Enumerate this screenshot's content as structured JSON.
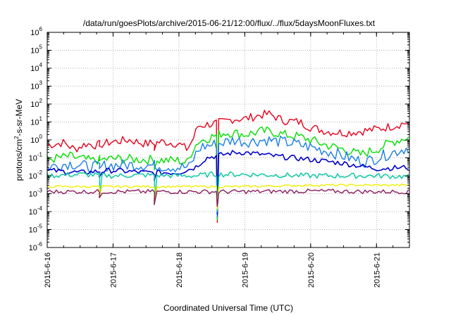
{
  "chart_data": {
    "type": "line",
    "title": "/data/run/goesPlots/archive/2015-06-21/12:00/flux/../flux/5daysMoonFluxes.txt",
    "xlabel": "Coordinated Universal Time (UTC)",
    "ylabel": {
      "prefix": "protons/cm",
      "sup": "2",
      "suffix": "-s-sr-MeV"
    },
    "y_scale": "log",
    "ylim": [
      1e-06,
      1000000.0
    ],
    "y_ticks": [
      {
        "value": 1000000.0,
        "base": "10",
        "exp": "6"
      },
      {
        "value": 100000.0,
        "base": "10",
        "exp": "5"
      },
      {
        "value": 10000.0,
        "base": "10",
        "exp": "4"
      },
      {
        "value": 1000.0,
        "base": "10",
        "exp": "3"
      },
      {
        "value": 100.0,
        "base": "10",
        "exp": "2"
      },
      {
        "value": 10.0,
        "base": "10",
        "exp": "1"
      },
      {
        "value": 1.0,
        "base": "10",
        "exp": "0"
      },
      {
        "value": 0.1,
        "base": "10",
        "exp": "-1"
      },
      {
        "value": 0.01,
        "base": "10",
        "exp": "-2"
      },
      {
        "value": 0.001,
        "base": "10",
        "exp": "-3"
      },
      {
        "value": 0.0001,
        "base": "10",
        "exp": "-4"
      },
      {
        "value": 1e-05,
        "base": "10",
        "exp": "-5"
      },
      {
        "value": 1e-06,
        "base": "10",
        "exp": "-6"
      }
    ],
    "xlim": [
      "2015-06-16T00:00",
      "2015-06-21T12:00"
    ],
    "x_ticks": [
      "2015-6-16",
      "2015-6-17",
      "2015-6-18",
      "2015-6-19",
      "2015-6-20",
      "2015-6-21"
    ],
    "grid": true,
    "legend": "none",
    "series": [
      {
        "color": "#e8001c",
        "noise": 0.08,
        "points": [
          [
            "2015-06-16T00:00",
            0.5
          ],
          [
            "2015-06-16T06:00",
            0.7
          ],
          [
            "2015-06-16T10:00",
            0.3
          ],
          [
            "2015-06-16T14:00",
            0.6
          ],
          [
            "2015-06-16T18:00",
            0.5
          ],
          [
            "2015-06-17T00:00",
            0.8
          ],
          [
            "2015-06-17T06:00",
            1.0
          ],
          [
            "2015-06-17T12:00",
            0.6
          ],
          [
            "2015-06-17T18:00",
            0.8
          ],
          [
            "2015-06-18T00:00",
            0.6
          ],
          [
            "2015-06-18T03:00",
            0.3
          ],
          [
            "2015-06-18T05:00",
            1.0
          ],
          [
            "2015-06-18T07:00",
            6.0
          ],
          [
            "2015-06-18T12:00",
            8.0
          ],
          [
            "2015-06-18T16:00",
            10.0
          ],
          [
            "2015-06-18T20:00",
            15.0
          ],
          [
            "2015-06-19T00:00",
            15.0
          ],
          [
            "2015-06-19T06:00",
            25.0
          ],
          [
            "2015-06-19T09:00",
            28.0
          ],
          [
            "2015-06-19T14:00",
            12.0
          ],
          [
            "2015-06-19T20:00",
            10.0
          ],
          [
            "2015-06-20T00:00",
            5.0
          ],
          [
            "2015-06-20T06:00",
            3.0
          ],
          [
            "2015-06-20T12:00",
            2.5
          ],
          [
            "2015-06-20T18:00",
            3.0
          ],
          [
            "2015-06-21T00:00",
            4.0
          ],
          [
            "2015-06-21T06:00",
            6.0
          ],
          [
            "2015-06-21T12:00",
            10.0
          ]
        ]
      },
      {
        "color": "#00e000",
        "noise": 0.09,
        "points": [
          [
            "2015-06-16T00:00",
            0.08
          ],
          [
            "2015-06-16T08:00",
            0.12
          ],
          [
            "2015-06-16T16:00",
            0.07
          ],
          [
            "2015-06-17T00:00",
            0.09
          ],
          [
            "2015-06-17T12:00",
            0.08
          ],
          [
            "2015-06-18T00:00",
            0.07
          ],
          [
            "2015-06-18T03:00",
            0.05
          ],
          [
            "2015-06-18T05:00",
            0.3
          ],
          [
            "2015-06-18T07:00",
            0.8
          ],
          [
            "2015-06-18T12:00",
            1.5
          ],
          [
            "2015-06-18T16:00",
            2.5
          ],
          [
            "2015-06-18T20:00",
            2.5
          ],
          [
            "2015-06-19T00:00",
            2.0
          ],
          [
            "2015-06-19T06:00",
            3.0
          ],
          [
            "2015-06-19T09:00",
            3.0
          ],
          [
            "2015-06-19T14:00",
            2.0
          ],
          [
            "2015-06-19T20:00",
            1.5
          ],
          [
            "2015-06-20T00:00",
            1.0
          ],
          [
            "2015-06-20T06:00",
            0.5
          ],
          [
            "2015-06-20T12:00",
            0.3
          ],
          [
            "2015-06-20T18:00",
            0.15
          ],
          [
            "2015-06-21T00:00",
            0.3
          ],
          [
            "2015-06-21T06:00",
            0.8
          ],
          [
            "2015-06-21T12:00",
            1.5
          ]
        ]
      },
      {
        "color": "#1a7fe8",
        "noise": 0.11,
        "points": [
          [
            "2015-06-16T00:00",
            0.03
          ],
          [
            "2015-06-16T08:00",
            0.05
          ],
          [
            "2015-06-16T16:00",
            0.03
          ],
          [
            "2015-06-17T00:00",
            0.04
          ],
          [
            "2015-06-17T12:00",
            0.04
          ],
          [
            "2015-06-18T00:00",
            0.03
          ],
          [
            "2015-06-18T04:00",
            0.03
          ],
          [
            "2015-06-18T06:00",
            0.15
          ],
          [
            "2015-06-18T08:00",
            0.4
          ],
          [
            "2015-06-18T14:00",
            0.6
          ],
          [
            "2015-06-18T20:00",
            1.0
          ],
          [
            "2015-06-19T00:00",
            0.8
          ],
          [
            "2015-06-19T08:00",
            1.0
          ],
          [
            "2015-06-19T16:00",
            0.7
          ],
          [
            "2015-06-20T00:00",
            0.4
          ],
          [
            "2015-06-20T08:00",
            0.2
          ],
          [
            "2015-06-20T16:00",
            0.08
          ],
          [
            "2015-06-20T20:00",
            0.06
          ],
          [
            "2015-06-21T00:00",
            0.1
          ],
          [
            "2015-06-21T06:00",
            0.2
          ],
          [
            "2015-06-21T12:00",
            0.4
          ]
        ]
      },
      {
        "color": "#0000cc",
        "noise": 0.05,
        "points": [
          [
            "2015-06-16T00:00",
            0.02
          ],
          [
            "2015-06-16T12:00",
            0.015
          ],
          [
            "2015-06-17T00:00",
            0.02
          ],
          [
            "2015-06-17T12:00",
            0.015
          ],
          [
            "2015-06-18T00:00",
            0.015
          ],
          [
            "2015-06-18T06:00",
            0.03
          ],
          [
            "2015-06-18T10:00",
            0.1
          ],
          [
            "2015-06-18T16:00",
            0.15
          ],
          [
            "2015-06-18T20:00",
            0.2
          ],
          [
            "2015-06-19T00:00",
            0.2
          ],
          [
            "2015-06-19T12:00",
            0.12
          ],
          [
            "2015-06-20T00:00",
            0.08
          ],
          [
            "2015-06-20T12:00",
            0.05
          ],
          [
            "2015-06-21T00:00",
            0.025
          ],
          [
            "2015-06-21T12:00",
            0.03
          ]
        ]
      },
      {
        "color": "#00c8a0",
        "noise": 0.05,
        "points": [
          [
            "2015-06-16T00:00",
            0.01
          ],
          [
            "2015-06-16T12:00",
            0.012
          ],
          [
            "2015-06-17T00:00",
            0.01
          ],
          [
            "2015-06-17T12:00",
            0.011
          ],
          [
            "2015-06-18T00:00",
            0.01
          ],
          [
            "2015-06-18T06:00",
            0.01
          ],
          [
            "2015-06-18T12:00",
            0.012
          ],
          [
            "2015-06-19T00:00",
            0.012
          ],
          [
            "2015-06-20T00:00",
            0.01
          ],
          [
            "2015-06-21T00:00",
            0.01
          ],
          [
            "2015-06-21T12:00",
            0.009
          ]
        ]
      },
      {
        "color": "#f0f000",
        "noise": 0.02,
        "points": [
          [
            "2015-06-16T00:00",
            0.0025
          ],
          [
            "2015-06-17T00:00",
            0.0025
          ],
          [
            "2015-06-18T00:00",
            0.0025
          ],
          [
            "2015-06-19T00:00",
            0.0025
          ],
          [
            "2015-06-20T00:00",
            0.003
          ],
          [
            "2015-06-21T00:00",
            0.003
          ],
          [
            "2015-06-21T12:00",
            0.003
          ]
        ]
      },
      {
        "color": "#8b1c5c",
        "noise": 0.04,
        "points": [
          [
            "2015-06-16T00:00",
            0.0013
          ],
          [
            "2015-06-17T00:00",
            0.0013
          ],
          [
            "2015-06-18T00:00",
            0.0013
          ],
          [
            "2015-06-19T00:00",
            0.0013
          ],
          [
            "2015-06-20T00:00",
            0.0014
          ],
          [
            "2015-06-21T00:00",
            0.0013
          ],
          [
            "2015-06-21T12:00",
            0.0013
          ]
        ]
      }
    ],
    "dips": [
      {
        "at": "2015-06-18T14:00",
        "value": 2.5e-05
      },
      {
        "at": "2015-06-17T15:00",
        "value": 0.00025
      },
      {
        "at": "2015-06-16T19:00",
        "value": 0.0006
      }
    ]
  }
}
